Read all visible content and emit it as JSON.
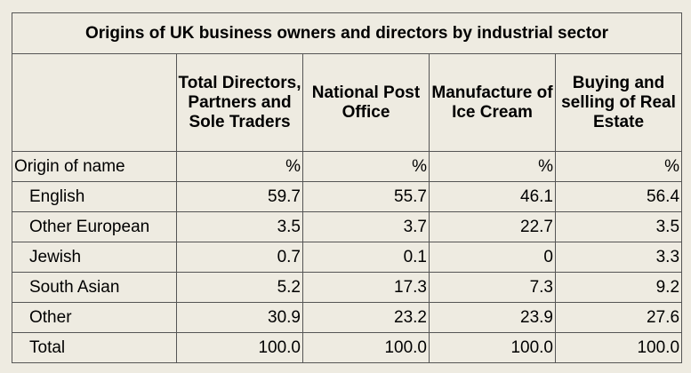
{
  "table": {
    "title": "Origins of UK business owners and directors by industrial sector",
    "columns": [
      "Total Directors, Partners and Sole Traders",
      "National Post Office",
      "Manufacture of Ice Cream",
      "Buying and selling of Real Estate"
    ],
    "unit_row": {
      "label": "Origin of name",
      "units": [
        "%",
        "%",
        "%",
        "%"
      ]
    },
    "rows": [
      {
        "label": "English",
        "values": [
          "59.7",
          "55.7",
          "46.1",
          "56.4"
        ]
      },
      {
        "label": "Other European",
        "values": [
          "3.5",
          "3.7",
          "22.7",
          "3.5"
        ]
      },
      {
        "label": "Jewish",
        "values": [
          "0.7",
          "0.1",
          "0",
          "3.3"
        ]
      },
      {
        "label": "South Asian",
        "values": [
          "5.2",
          "17.3",
          "7.3",
          "9.2"
        ]
      },
      {
        "label": "Other",
        "values": [
          "30.9",
          "23.2",
          "23.9",
          "27.6"
        ]
      },
      {
        "label": "Total",
        "values": [
          "100.0",
          "100.0",
          "100.0",
          "100.0"
        ]
      }
    ]
  }
}
